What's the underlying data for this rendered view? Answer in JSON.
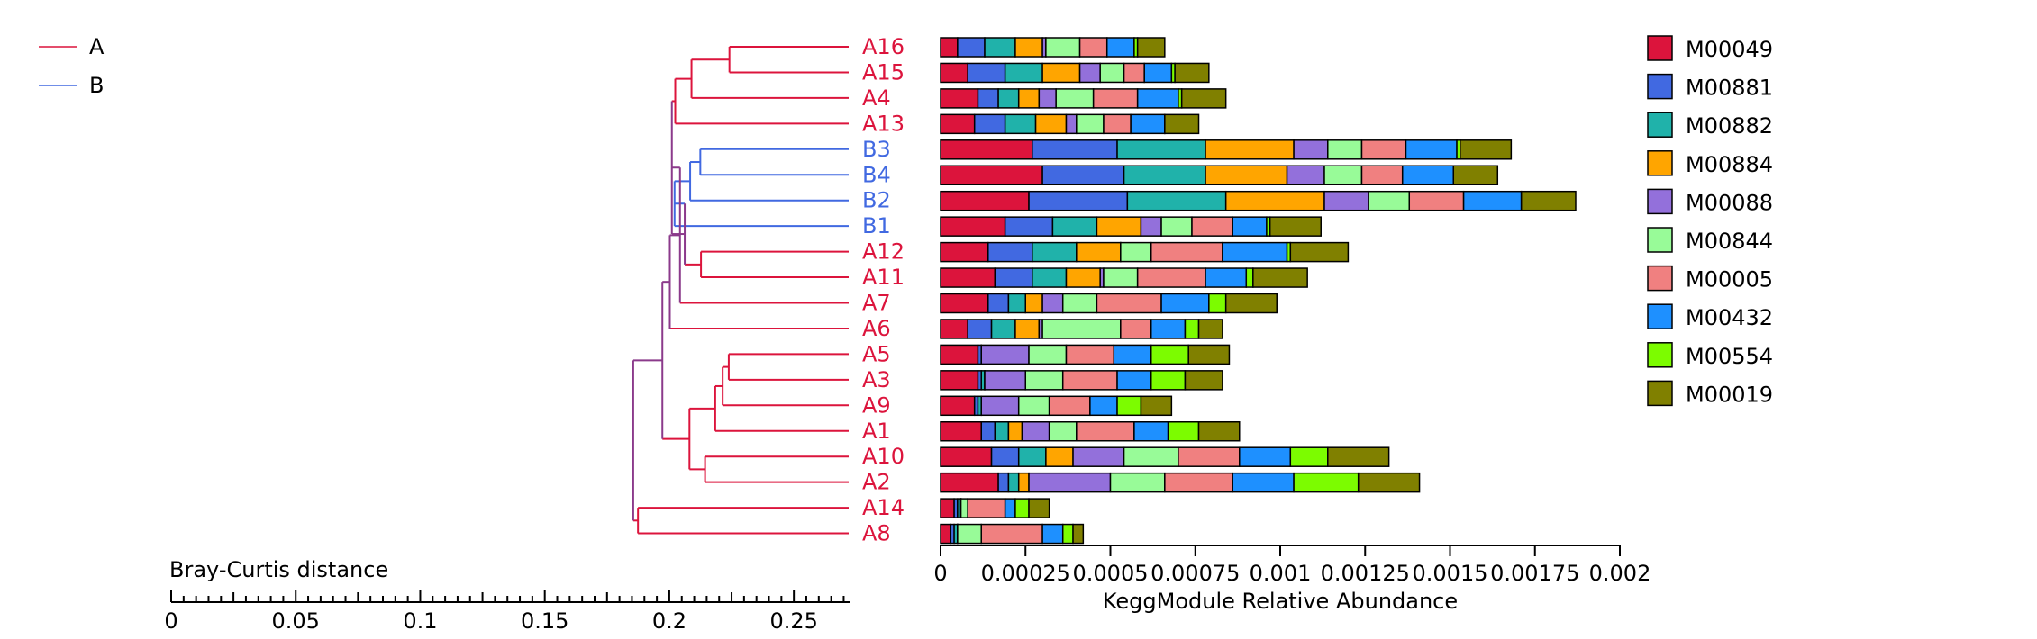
{
  "figure": {
    "group_legend": [
      {
        "name": "A",
        "color": "#dc143c"
      },
      {
        "name": "B",
        "color": "#4169e1"
      }
    ],
    "merge_color": "#8b3a8b"
  },
  "chart_data": [
    {
      "type": "dendrogram",
      "xlabel": "Bray-Curtis distance",
      "xlim": [
        0,
        0.27
      ],
      "ticks": [
        "0",
        "0.05",
        "0.1",
        "0.15",
        "0.2",
        "0.25"
      ],
      "tick_values": [
        0,
        0.05,
        0.1,
        0.15,
        0.2,
        0.25
      ],
      "leaves": [
        {
          "name": "A16",
          "group": "A"
        },
        {
          "name": "A15",
          "group": "A"
        },
        {
          "name": "A4",
          "group": "A"
        },
        {
          "name": "A13",
          "group": "A"
        },
        {
          "name": "B3",
          "group": "B"
        },
        {
          "name": "B4",
          "group": "B"
        },
        {
          "name": "B2",
          "group": "B"
        },
        {
          "name": "B1",
          "group": "B"
        },
        {
          "name": "A12",
          "group": "A"
        },
        {
          "name": "A11",
          "group": "A"
        },
        {
          "name": "A7",
          "group": "A"
        },
        {
          "name": "A6",
          "group": "A"
        },
        {
          "name": "A5",
          "group": "A"
        },
        {
          "name": "A3",
          "group": "A"
        },
        {
          "name": "A9",
          "group": "A"
        },
        {
          "name": "A1",
          "group": "A"
        },
        {
          "name": "A10",
          "group": "A"
        },
        {
          "name": "A2",
          "group": "A"
        },
        {
          "name": "A14",
          "group": "A"
        },
        {
          "name": "A8",
          "group": "A"
        }
      ],
      "merges": [
        {
          "a": "A16",
          "b": "A15",
          "height": 0.176
        },
        {
          "a": "#0",
          "b": "A4",
          "height": 0.232
        },
        {
          "a": "#1",
          "b": "A13",
          "height": 0.256
        },
        {
          "a": "B3",
          "b": "B4",
          "height": 0.219
        },
        {
          "a": "#3",
          "b": "B2",
          "height": 0.234
        },
        {
          "a": "#4",
          "b": "B1",
          "height": 0.257
        },
        {
          "a": "A12",
          "b": "A11",
          "height": 0.218
        },
        {
          "a": "#5",
          "b": "#6",
          "height": 0.242
        },
        {
          "a": "#2",
          "b": "#7",
          "height": 0.261
        },
        {
          "a": "A5",
          "b": "A3",
          "height": 0.177
        },
        {
          "a": "#9",
          "b": "A9",
          "height": 0.186
        },
        {
          "a": "#10",
          "b": "A1",
          "height": 0.197
        },
        {
          "a": "A10",
          "b": "A2",
          "height": 0.212
        },
        {
          "a": "#11",
          "b": "#12",
          "height": 0.235
        },
        {
          "a": "#8",
          "b": "A7",
          "height": 0.249
        },
        {
          "a": "#14",
          "b": "A6",
          "height": 0.264
        },
        {
          "a": "#15",
          "b": "#13",
          "height": 0.275
        },
        {
          "a": "A14",
          "b": "A8",
          "height": 0.311
        },
        {
          "a": "#16",
          "b": "#17",
          "height": 0.318
        }
      ]
    },
    {
      "type": "bar",
      "stacked": true,
      "orientation": "horizontal",
      "xlabel": "KeggModule Relative Abundance",
      "xlim": [
        0,
        0.002
      ],
      "ticks": [
        "0",
        "0.00025",
        "0.0005",
        "0.00075",
        "0.001",
        "0.00125",
        "0.0015",
        "0.00175",
        "0.002"
      ],
      "tick_values": [
        0,
        0.00025,
        0.0005,
        0.00075,
        0.001,
        0.00125,
        0.0015,
        0.00175,
        0.002
      ],
      "legend_position": "right",
      "categories": [
        "A16",
        "A15",
        "A4",
        "A13",
        "B3",
        "B4",
        "B2",
        "B1",
        "A12",
        "A11",
        "A7",
        "A6",
        "A5",
        "A3",
        "A9",
        "A1",
        "A10",
        "A2",
        "A14",
        "A8"
      ],
      "series": [
        {
          "name": "M00049",
          "color": "#dc143c",
          "values": [
            5e-05,
            8e-05,
            0.00011,
            0.0001,
            0.00027,
            0.0003,
            0.00026,
            0.00019,
            0.00014,
            0.00016,
            0.00014,
            8e-05,
            0.00011,
            0.00011,
            0.0001,
            0.00012,
            0.00015,
            0.00017,
            4e-05,
            3e-05
          ]
        },
        {
          "name": "M00881",
          "color": "#4169e1",
          "values": [
            8e-05,
            0.00011,
            6e-05,
            9e-05,
            0.00025,
            0.00024,
            0.00029,
            0.00014,
            0.00013,
            0.00011,
            6e-05,
            7e-05,
            1e-05,
            1e-05,
            1e-05,
            4e-05,
            8e-05,
            3e-05,
            1e-05,
            1e-05
          ]
        },
        {
          "name": "M00882",
          "color": "#20b2aa",
          "values": [
            9e-05,
            0.00011,
            6e-05,
            9e-05,
            0.00026,
            0.00024,
            0.00029,
            0.00013,
            0.00013,
            0.0001,
            5e-05,
            7e-05,
            0,
            1e-05,
            1e-05,
            4e-05,
            8e-05,
            3e-05,
            1e-05,
            1e-05
          ]
        },
        {
          "name": "M00884",
          "color": "#ffa500",
          "values": [
            8e-05,
            0.00011,
            6e-05,
            9e-05,
            0.00026,
            0.00024,
            0.00029,
            0.00013,
            0.00013,
            0.0001,
            5e-05,
            7e-05,
            0,
            0,
            0,
            4e-05,
            8e-05,
            3e-05,
            0,
            0
          ]
        },
        {
          "name": "M00088",
          "color": "#9370db",
          "values": [
            1e-05,
            6e-05,
            5e-05,
            3e-05,
            0.0001,
            0.00011,
            0.00013,
            6e-05,
            0,
            1e-05,
            6e-05,
            1e-05,
            0.00014,
            0.00012,
            0.00011,
            8e-05,
            0.00015,
            0.00024,
            0,
            0
          ]
        },
        {
          "name": "M00844",
          "color": "#98fb98",
          "values": [
            0.0001,
            7e-05,
            0.00011,
            8e-05,
            0.0001,
            0.00011,
            0.00012,
            9e-05,
            9e-05,
            0.0001,
            0.0001,
            0.00023,
            0.00011,
            0.00011,
            9e-05,
            8e-05,
            0.00016,
            0.00016,
            2e-05,
            7e-05
          ]
        },
        {
          "name": "M00005",
          "color": "#f08080",
          "values": [
            8e-05,
            6e-05,
            0.00013,
            8e-05,
            0.00013,
            0.00012,
            0.00016,
            0.00012,
            0.00021,
            0.0002,
            0.00019,
            9e-05,
            0.00014,
            0.00016,
            0.00012,
            0.00017,
            0.00018,
            0.0002,
            0.00011,
            0.00018
          ]
        },
        {
          "name": "M00432",
          "color": "#1e90ff",
          "values": [
            8e-05,
            8e-05,
            0.00012,
            0.0001,
            0.00015,
            0.00015,
            0.00017,
            0.0001,
            0.00019,
            0.00012,
            0.00014,
            0.0001,
            0.00011,
            0.0001,
            8e-05,
            0.0001,
            0.00015,
            0.00018,
            3e-05,
            6e-05
          ]
        },
        {
          "name": "M00554",
          "color": "#7cfc00",
          "values": [
            1e-05,
            1e-05,
            1e-05,
            0,
            1e-05,
            0,
            0,
            1e-05,
            1e-05,
            2e-05,
            5e-05,
            4e-05,
            0.00011,
            0.0001,
            7e-05,
            9e-05,
            0.00011,
            0.00019,
            4e-05,
            3e-05
          ]
        },
        {
          "name": "M00019",
          "color": "#808000",
          "values": [
            8e-05,
            0.0001,
            0.00013,
            0.0001,
            0.00015,
            0.00013,
            0.00016,
            0.00015,
            0.00017,
            0.00016,
            0.00015,
            7e-05,
            0.00012,
            0.00011,
            9e-05,
            0.00012,
            0.00018,
            0.00018,
            6e-05,
            3e-05
          ]
        }
      ]
    }
  ]
}
